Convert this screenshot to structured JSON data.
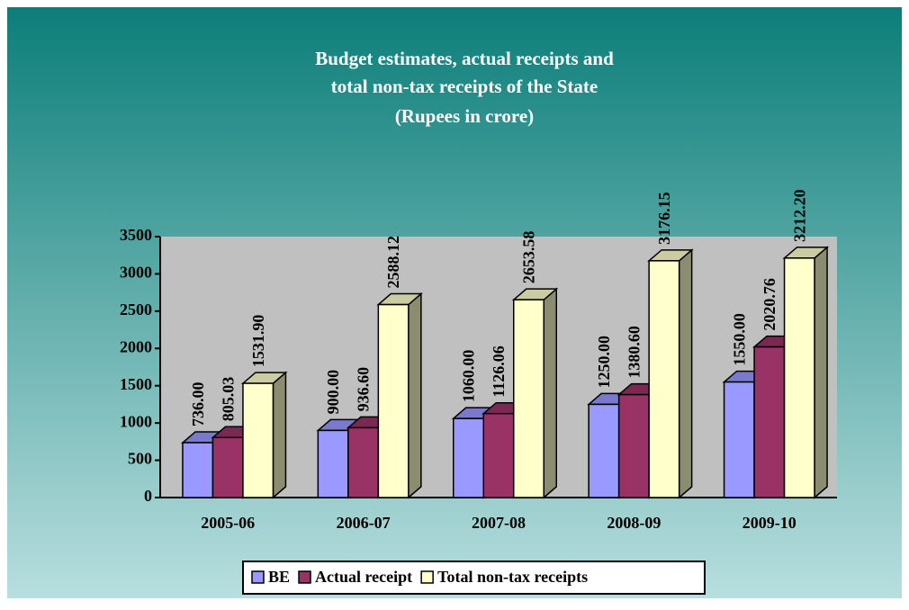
{
  "chart_data": {
    "type": "bar3d",
    "title": "Budget estimates, actual receipts and",
    "subtitle": "total non-tax receipts of the State",
    "unit_label": "(Rupees in crore)",
    "categories": [
      "2005-06",
      "2006-07",
      "2007-08",
      "2008-09",
      "2009-10"
    ],
    "series": [
      {
        "name": "BE",
        "color": "#9999ff",
        "values": [
          736,
          900,
          1060,
          1250,
          1550
        ],
        "value_labels": [
          "736.00",
          "900.00",
          "1060.00",
          "1250.00",
          "1550.00"
        ]
      },
      {
        "name": "Actual receipt",
        "color": "#993366",
        "values": [
          805.03,
          936.6,
          1126.06,
          1380.6,
          2020.76
        ],
        "value_labels": [
          "805.03",
          "936.60",
          "1126.06",
          "1380.60",
          "2020.76"
        ]
      },
      {
        "name": "Total non-tax receipts",
        "color": "#ffffcc",
        "values": [
          1531.9,
          2588.12,
          2653.58,
          3176.15,
          3212.2
        ],
        "value_labels": [
          "1531.90",
          "2588.12",
          "2653.58",
          "3176.15",
          "3212.20"
        ]
      }
    ],
    "ylim": [
      0,
      3500
    ],
    "yticks": [
      0,
      500,
      1000,
      1500,
      2000,
      2500,
      3000,
      3500
    ],
    "legend": "bottom"
  }
}
